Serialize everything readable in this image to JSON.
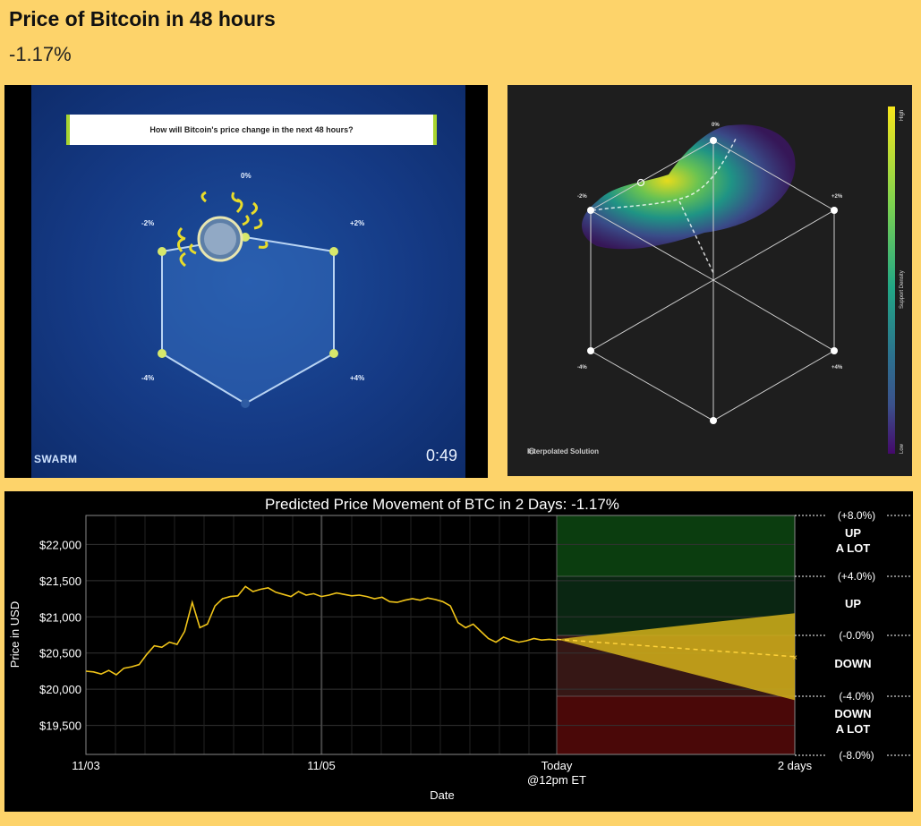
{
  "header": {
    "title": "Price of Bitcoin in 48 hours",
    "change": "-1.17%"
  },
  "swarm": {
    "question": "How will Bitcoin's price change in the next 48 hours?",
    "labels": {
      "top": "0%",
      "left_top": "-2%",
      "right_top": "+2%",
      "left_bottom": "-4%",
      "right_bottom": "+4%"
    },
    "brand": "SWARM",
    "timer": "0:49"
  },
  "density": {
    "labels": {
      "top": "0%",
      "left_top": "-2%",
      "right_top": "+2%",
      "left_bottom": "-4%",
      "right_bottom": "+4%"
    },
    "caption": "Interpolated Solution",
    "legend_title": "Support Density",
    "legend_high": "High",
    "legend_low": "Low"
  },
  "chart_data": {
    "type": "line",
    "title": "Predicted Price Movement of BTC in 2 Days: -1.17%",
    "xlabel": "Date",
    "ylabel": "Price in USD",
    "x_ticks": [
      "11/03",
      "11/05",
      "Today\n@12pm ET",
      "2 days"
    ],
    "y_ticks": [
      "$19,500",
      "$20,000",
      "$20,500",
      "$21,000",
      "$21,500",
      "$22,000"
    ],
    "ylim": [
      19100,
      22400
    ],
    "grid": true,
    "series": [
      {
        "values": [
          20250,
          20240,
          20210,
          20260,
          20200,
          20290,
          20310,
          20340,
          20480,
          20600,
          20580,
          20650,
          20620,
          20800,
          21200,
          20850,
          20900,
          21150,
          21250,
          21280,
          21290,
          21420,
          21350,
          21380,
          21400,
          21340,
          21310,
          21280,
          21350,
          21300,
          21320,
          21280,
          21300,
          21330,
          21310,
          21290,
          21300,
          21280,
          21250,
          21270,
          21210,
          21200,
          21230,
          21250,
          21230,
          21260,
          21240,
          21210,
          21150,
          20920,
          20850,
          20900,
          20800,
          20700,
          20650,
          20720,
          20680,
          20650,
          20670,
          20700,
          20680,
          20690,
          20680
        ]
      }
    ],
    "forecast": {
      "start": 20690,
      "end": 20450,
      "upper_end": 21050,
      "lower_end": 19850
    },
    "zones": [
      {
        "label": "UP\nA LOT",
        "color": "#0b3d0f"
      },
      {
        "label": "UP",
        "color": "#0a2612"
      },
      {
        "label": "DOWN",
        "color": "#361715"
      },
      {
        "label": "DOWN\nA LOT",
        "color": "#4a0808"
      }
    ],
    "zone_boundaries": [
      "(+8.0%)",
      "(+4.0%)",
      "(-0.0%)",
      "(-4.0%)",
      "(-8.0%)"
    ]
  }
}
